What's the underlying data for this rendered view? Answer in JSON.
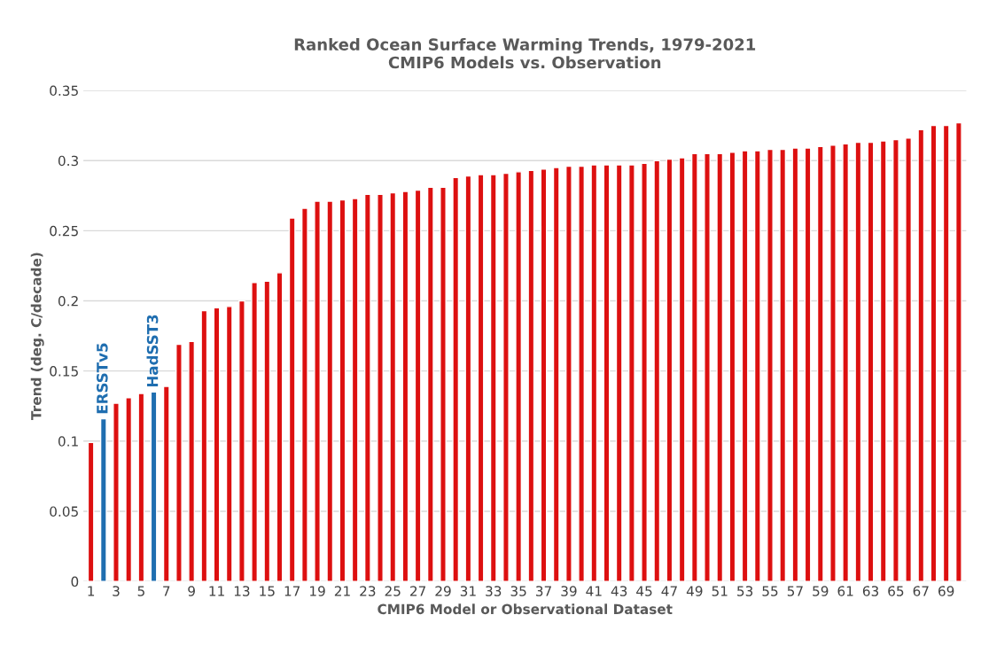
{
  "chart_data": {
    "type": "bar",
    "title": "Ranked Ocean Surface Warming Trends, 1979-2021\nCMIP6 Models vs. Observation",
    "ylabel": "Trend (deg. C/decade)",
    "xlabel": "CMIP6 Model or Observational Dataset",
    "categories": [
      "1",
      null,
      "3",
      null,
      "5",
      null,
      "7",
      null,
      "9",
      null,
      "11",
      null,
      "13",
      null,
      "15",
      null,
      "17",
      null,
      "19",
      null,
      "21",
      null,
      "23",
      null,
      "25",
      null,
      "27",
      null,
      "29",
      null,
      "31",
      null,
      "33",
      null,
      "35",
      null,
      "37",
      null,
      "39",
      null,
      "41",
      null,
      "43",
      null,
      "45",
      null,
      "47",
      null,
      "49",
      null,
      "51",
      null,
      "53",
      null,
      "55",
      null,
      "57",
      null,
      "59",
      null,
      "61",
      null,
      "63",
      null,
      "65",
      null,
      "67",
      null,
      "69",
      null
    ],
    "series": [
      {
        "color": "#dd1010",
        "values": [
          0.099,
          null,
          0.127,
          0.131,
          0.134,
          null,
          0.139,
          0.169,
          0.171,
          0.193,
          0.195,
          0.196,
          0.2,
          0.213,
          0.214,
          0.22,
          0.259,
          0.266,
          0.271,
          0.271,
          0.272,
          0.273,
          0.276,
          0.276,
          0.277,
          0.278,
          0.279,
          0.281,
          0.281,
          0.288,
          0.289,
          0.29,
          0.29,
          0.291,
          0.292,
          0.293,
          0.294,
          0.295,
          0.296,
          0.296,
          0.297,
          0.297,
          0.297,
          0.297,
          0.298,
          0.3,
          0.301,
          0.302,
          0.305,
          0.305,
          0.305,
          0.306,
          0.307,
          0.307,
          0.308,
          0.308,
          0.309,
          0.309,
          0.31,
          0.311,
          0.312,
          0.313,
          0.313,
          0.314,
          0.315,
          0.316,
          0.322,
          0.325,
          0.325,
          0.327
        ]
      },
      {
        "name": "ERSSTv5",
        "color": "#1f6eb0",
        "values": [
          null,
          0.116,
          null,
          null,
          null,
          null,
          null,
          null,
          null,
          null,
          null,
          null,
          null,
          null,
          null,
          null,
          null,
          null,
          null,
          null,
          null,
          null,
          null,
          null,
          null,
          null,
          null,
          null,
          null,
          null,
          null,
          null,
          null,
          null,
          null,
          null,
          null,
          null,
          null,
          null,
          null,
          null,
          null,
          null,
          null,
          null,
          null,
          null,
          null,
          null,
          null,
          null,
          null,
          null,
          null,
          null,
          null,
          null,
          null,
          null,
          null,
          null,
          null,
          null,
          null,
          null,
          null,
          null,
          null,
          null
        ]
      },
      {
        "name": "HadSST3",
        "color": "#1f6eb0",
        "values": [
          null,
          null,
          null,
          null,
          null,
          0.135,
          null,
          null,
          null,
          null,
          null,
          null,
          null,
          null,
          null,
          null,
          null,
          null,
          null,
          null,
          null,
          null,
          null,
          null,
          null,
          null,
          null,
          null,
          null,
          null,
          null,
          null,
          null,
          null,
          null,
          null,
          null,
          null,
          null,
          null,
          null,
          null,
          null,
          null,
          null,
          null,
          null,
          null,
          null,
          null,
          null,
          null,
          null,
          null,
          null,
          null,
          null,
          null,
          null,
          null,
          null,
          null,
          null,
          null,
          null,
          null,
          null,
          null,
          null,
          null
        ]
      }
    ],
    "ylim": [
      0,
      0.35
    ],
    "yticks": [
      0,
      0.05,
      0.1,
      0.15,
      0.2,
      0.25,
      0.3,
      0.35
    ],
    "grid": "y"
  }
}
